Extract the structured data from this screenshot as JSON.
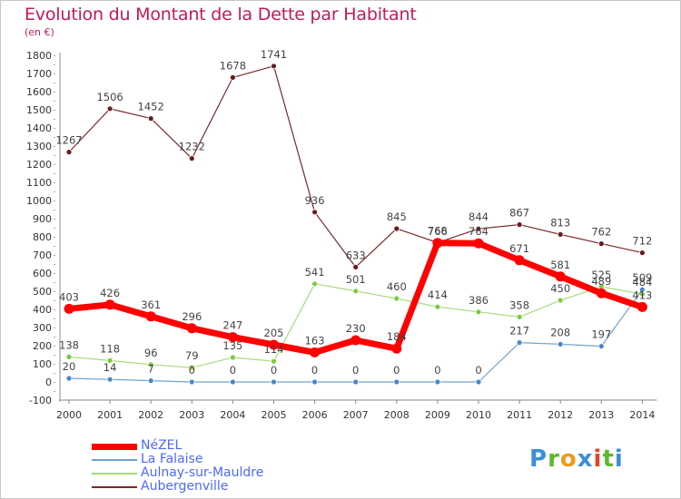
{
  "chart_data": {
    "type": "line",
    "title": "Evolution du Montant de la Dette par Habitant",
    "subtitle": "(en €)",
    "x": [
      "2000",
      "2001",
      "2002",
      "2003",
      "2004",
      "2005",
      "2006",
      "2007",
      "2008",
      "2009",
      "2010",
      "2011",
      "2012",
      "2013",
      "2014"
    ],
    "ylim": [
      -100,
      1800
    ],
    "yticks": [
      -100,
      0,
      100,
      200,
      300,
      400,
      500,
      600,
      700,
      800,
      900,
      1000,
      1100,
      1200,
      1300,
      1400,
      1500,
      1600,
      1700,
      1800
    ],
    "grid": false,
    "legend_position": "bottom-left",
    "series": [
      {
        "name": "NéZEL",
        "color": "#ff0000",
        "marker_color": "#ff0000",
        "values": [
          403,
          426,
          361,
          296,
          247,
          205,
          163,
          230,
          184,
          766,
          764,
          671,
          581,
          489,
          413
        ]
      },
      {
        "name": "La Falaise",
        "color": "#6fa3cf",
        "marker_color": "#4a86c8",
        "values": [
          20,
          14,
          7,
          0,
          0,
          0,
          0,
          0,
          0,
          0,
          0,
          217,
          208,
          197,
          509
        ]
      },
      {
        "name": "Aulnay-sur-Mauldre",
        "color": "#a6dc7c",
        "marker_color": "#7acb3a",
        "values": [
          138,
          118,
          96,
          79,
          135,
          114,
          541,
          501,
          460,
          414,
          386,
          358,
          450,
          525,
          484
        ]
      },
      {
        "name": "Aubergenville",
        "color": "#7a2a2a",
        "marker_color": "#6a1a1a",
        "values": [
          1267,
          1506,
          1452,
          1232,
          1678,
          1741,
          936,
          633,
          845,
          768,
          844,
          867,
          813,
          762,
          712
        ]
      }
    ]
  },
  "branding": {
    "logo_text": "Proxiti"
  }
}
